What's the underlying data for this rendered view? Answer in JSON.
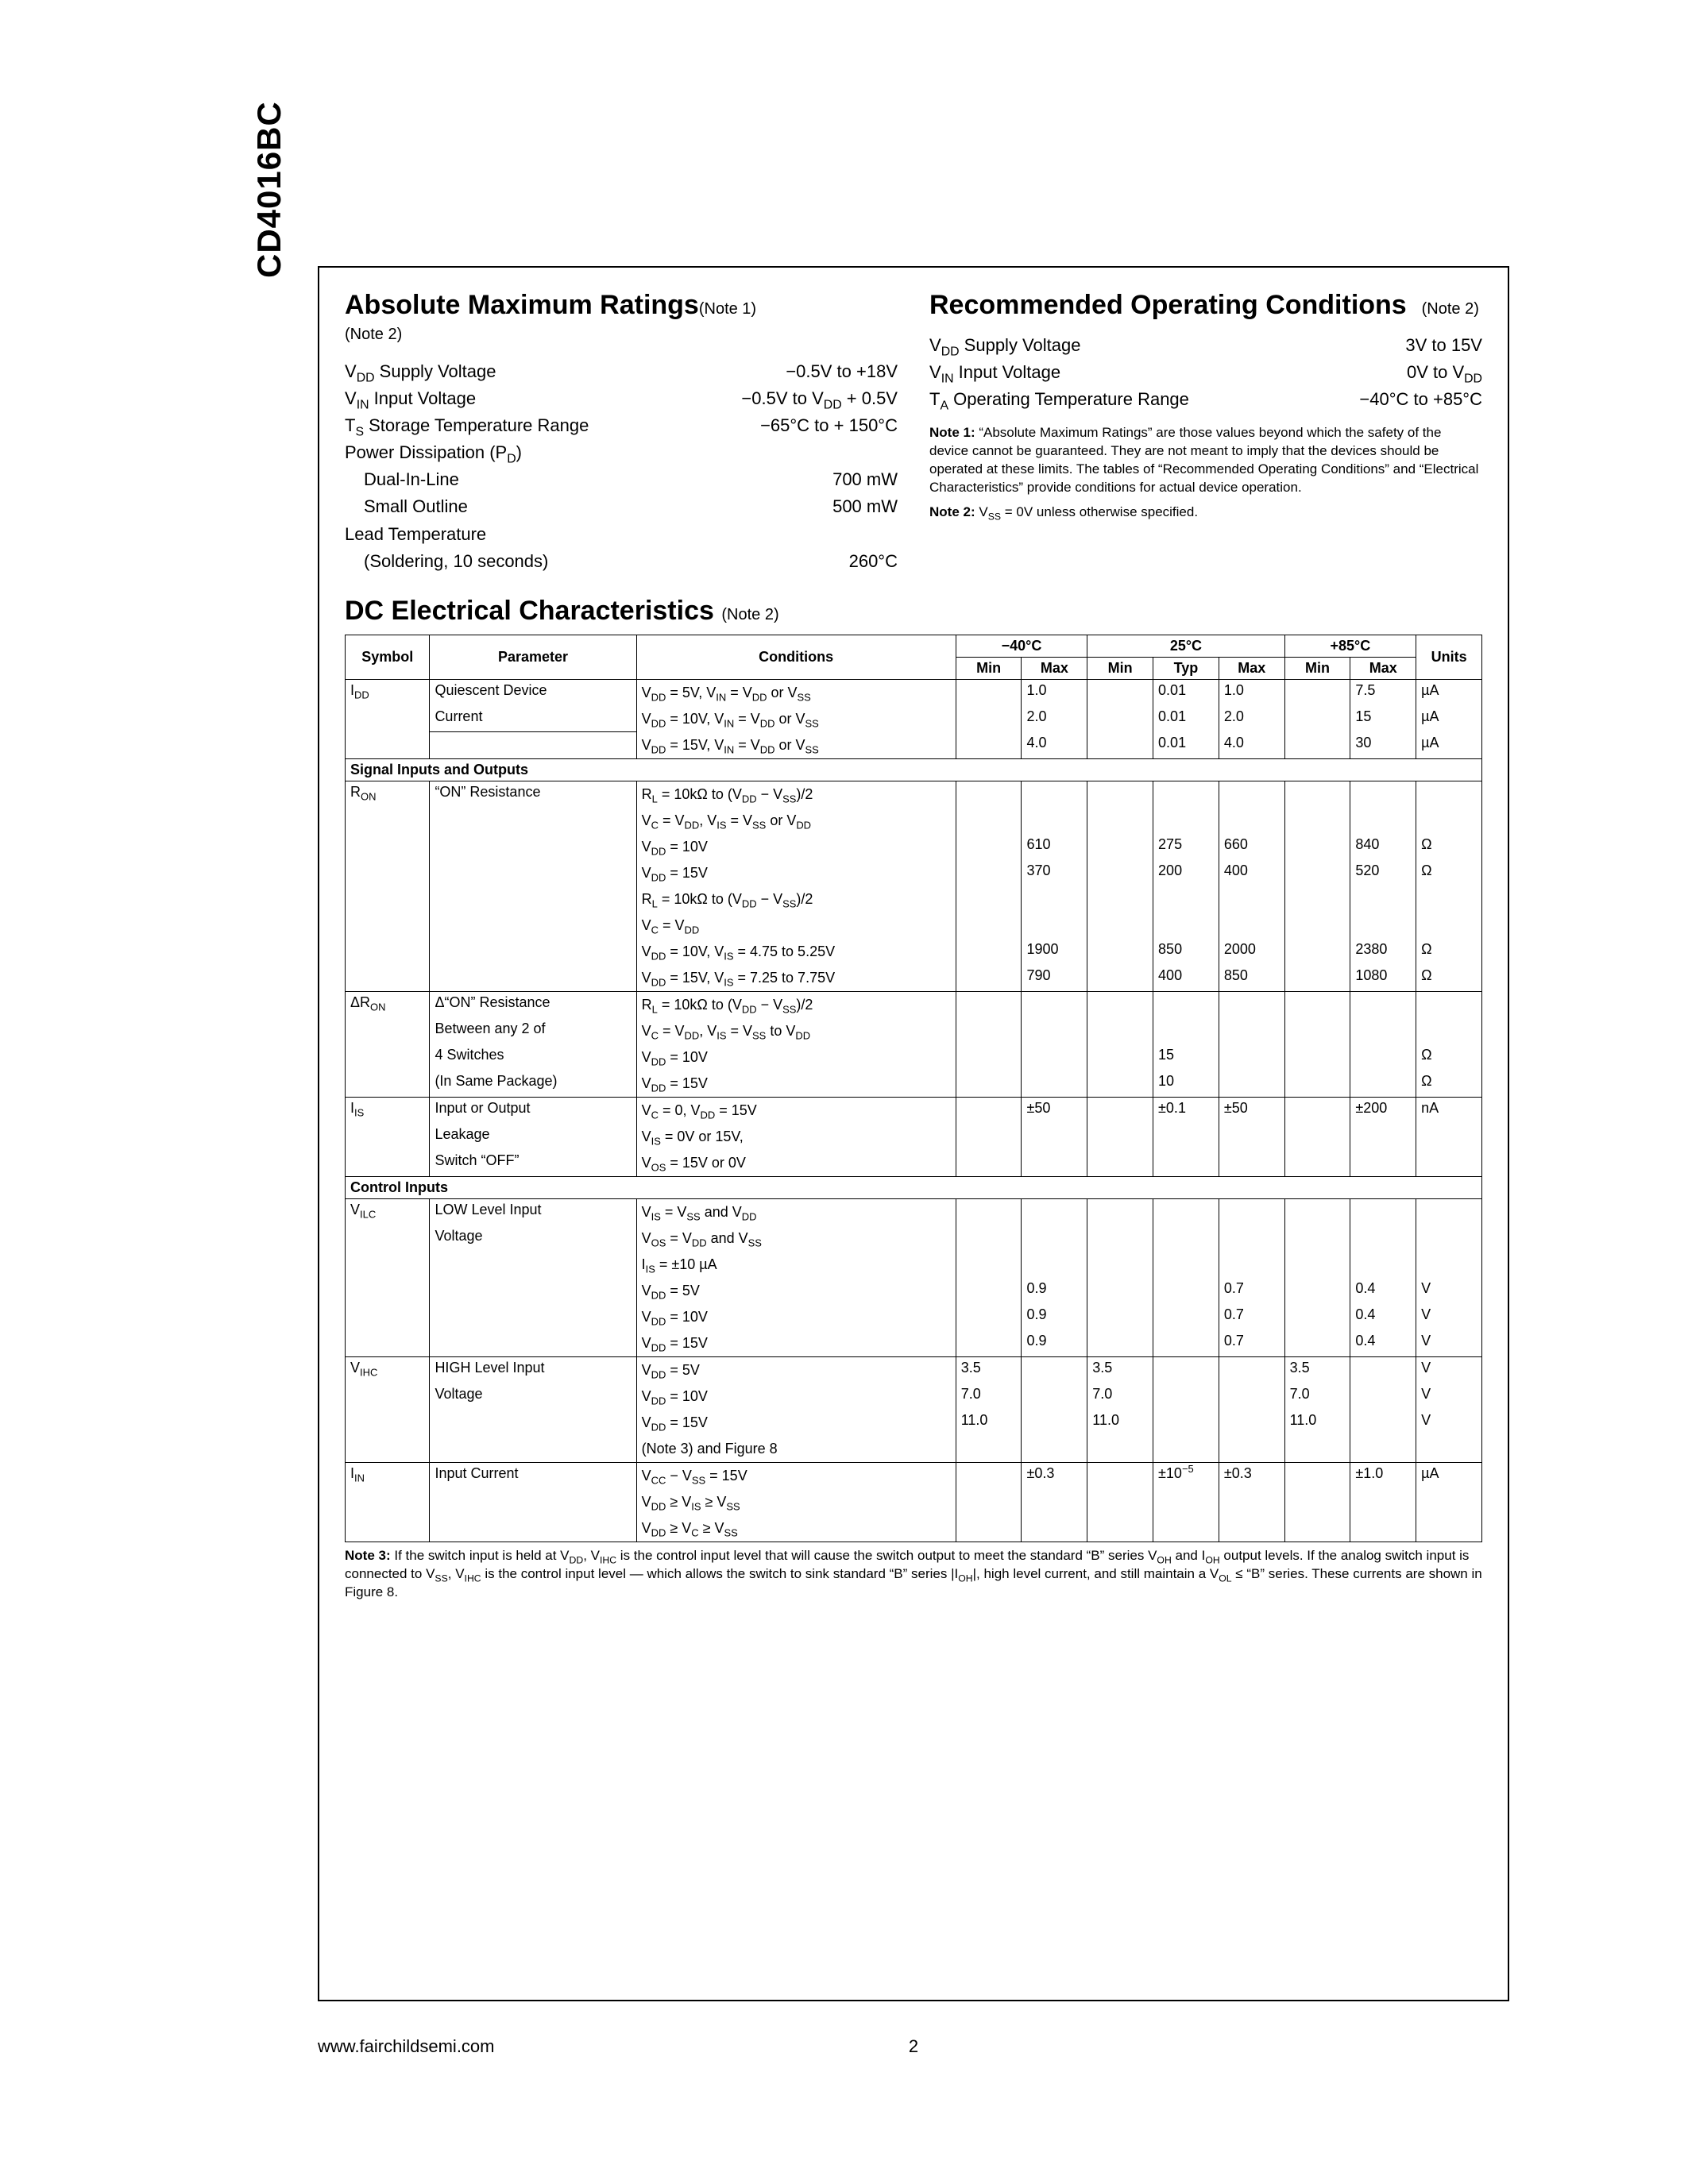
{
  "part_number": "CD4016BC",
  "footer": {
    "url": "www.fairchildsemi.com",
    "page": "2"
  },
  "amr": {
    "title": "Absolute Maximum Ratings",
    "title_note": "(Note 1)",
    "sub_note": "(Note 2)",
    "rows": [
      {
        "label_html": "V<sub>DD</sub> Supply Voltage",
        "value": "−0.5V to +18V"
      },
      {
        "label_html": "V<sub>IN</sub> Input Voltage",
        "value_html": "−0.5V to V<sub>DD</sub> + 0.5V"
      },
      {
        "label_html": "T<sub>S</sub> Storage Temperature Range",
        "value": "−65°C to + 150°C"
      },
      {
        "label_html": "Power Dissipation (P<sub>D</sub>)",
        "value": ""
      },
      {
        "label_html": "Dual-In-Line",
        "value": "700 mW",
        "indent": true
      },
      {
        "label_html": "Small Outline",
        "value": "500 mW",
        "indent": true
      },
      {
        "label_html": "Lead Temperature",
        "value": ""
      },
      {
        "label_html": "(Soldering, 10 seconds)",
        "value": "260°C",
        "indent": true
      }
    ]
  },
  "roc": {
    "title": "Recommended Operating Conditions",
    "title_note": "(Note 2)",
    "rows": [
      {
        "label_html": "V<sub>DD</sub> Supply Voltage",
        "value": "3V to 15V"
      },
      {
        "label_html": "V<sub>IN</sub> Input Voltage",
        "value_html": "0V to V<sub>DD</sub>"
      },
      {
        "label_html": "T<sub>A</sub> Operating Temperature Range",
        "value": "−40°C to +85°C"
      }
    ],
    "note1_html": "<b>Note 1:</b> “Absolute Maximum Ratings” are those values beyond which the safety of the device cannot be guaranteed. They are not meant to imply that the devices should be operated at these limits. The tables of “Recommended Operating Conditions” and “Electrical Characteristics” provide conditions for actual device operation.",
    "note2_html": "<b>Note 2:</b> V<sub>SS</sub> = 0V unless otherwise specified."
  },
  "dc": {
    "title": "DC Electrical Characteristics",
    "title_note": "(Note 2)",
    "header": {
      "symbol": "Symbol",
      "parameter": "Parameter",
      "conditions": "Conditions",
      "t1": "−40°C",
      "t2": "25°C",
      "t3": "+85°C",
      "min": "Min",
      "typ": "Typ",
      "max": "Max",
      "units": "Units"
    },
    "note3_html": "<b>Note 3:</b> If the switch input is held at V<sub>DD</sub>, V<sub>IHC</sub> is the control input level that will cause the switch output to meet the standard “B” series V<sub>OH</sub> and I<sub>OH</sub> output levels. If the analog switch input is connected to V<sub>SS</sub>, V<sub>IHC</sub> is the control input level — which allows the switch to sink standard “B” series |I<sub>OH</sub>|, high level current, and still maintain a V<sub>OL</sub> ≤ “B” series. These currents are shown in Figure 8."
  },
  "idd": {
    "symbol_html": "I<sub>DD</sub>",
    "param": "Quiescent Device Current",
    "lines": [
      {
        "cond_html": "V<sub>DD</sub> = 5V, V<sub>IN</sub> = V<sub>DD</sub> or V<sub>SS</sub>",
        "max40": "1.0",
        "typ25": "0.01",
        "max25": "1.0",
        "max85": "7.5",
        "units": "µA"
      },
      {
        "cond_html": "V<sub>DD</sub> = 10V, V<sub>IN</sub> = V<sub>DD</sub> or V<sub>SS</sub>",
        "max40": "2.0",
        "typ25": "0.01",
        "max25": "2.0",
        "max85": "15",
        "units": "µA"
      },
      {
        "cond_html": "V<sub>DD</sub> = 15V, V<sub>IN</sub> = V<sub>DD</sub> or V<sub>SS</sub>",
        "max40": "4.0",
        "typ25": "0.01",
        "max25": "4.0",
        "max85": "30",
        "units": "µA"
      }
    ]
  },
  "section_sig": "Signal Inputs and Outputs",
  "ron": {
    "symbol_html": "R<sub>ON</sub>",
    "param": "“ON” Resistance",
    "cond_html": [
      "R<sub>L</sub> = 10kΩ to (V<sub>DD</sub> − V<sub>SS</sub>)/2",
      "V<sub>C</sub> = V<sub>DD</sub>, V<sub>IS</sub> = V<sub>SS</sub> or V<sub>DD</sub>",
      "V<sub>DD</sub> = 10V",
      "V<sub>DD</sub> = 15V",
      "R<sub>L</sub> = 10kΩ to (V<sub>DD</sub> − V<sub>SS</sub>)/2",
      "V<sub>C</sub> = V<sub>DD</sub>",
      "V<sub>DD</sub> = 10V, V<sub>IS</sub> = 4.75 to 5.25V",
      "V<sub>DD</sub> = 15V, V<sub>IS</sub> = 7.25 to 7.75V"
    ],
    "rows": [
      {
        "max40": "610",
        "typ25": "275",
        "max25": "660",
        "max85": "840",
        "units": "Ω"
      },
      {
        "max40": "370",
        "typ25": "200",
        "max25": "400",
        "max85": "520",
        "units": "Ω"
      },
      {
        "max40": "1900",
        "typ25": "850",
        "max25": "2000",
        "max85": "2380",
        "units": "Ω"
      },
      {
        "max40": "790",
        "typ25": "400",
        "max25": "850",
        "max85": "1080",
        "units": "Ω"
      }
    ]
  },
  "dron": {
    "symbol_html": "ΔR<sub>ON</sub>",
    "param_lines": [
      "Δ“ON” Resistance",
      "Between any 2 of",
      "4 Switches",
      "(In Same Package)"
    ],
    "cond_html": [
      "R<sub>L</sub> = 10kΩ to (V<sub>DD</sub> − V<sub>SS</sub>)/2",
      "V<sub>C</sub> = V<sub>DD</sub>, V<sub>IS</sub> = V<sub>SS</sub> to V<sub>DD</sub>",
      "V<sub>DD</sub> = 10V",
      "V<sub>DD</sub> = 15V"
    ],
    "rows": [
      {
        "typ25": "15",
        "units": "Ω"
      },
      {
        "typ25": "10",
        "units": "Ω"
      }
    ]
  },
  "iis": {
    "symbol_html": "I<sub>IS</sub>",
    "param_lines": [
      "Input or Output",
      "Leakage",
      "Switch “OFF”"
    ],
    "cond_html": [
      "V<sub>C</sub> = 0, V<sub>DD</sub> = 15V",
      "V<sub>IS</sub> = 0V or 15V,",
      "V<sub>OS</sub> = 15V or 0V"
    ],
    "row": {
      "max40": "±50",
      "typ25": "±0.1",
      "max25": "±50",
      "max85": "±200",
      "units": "nA"
    }
  },
  "section_ctrl": "Control Inputs",
  "vilc": {
    "symbol_html": "V<sub>ILC</sub>",
    "param_lines": [
      "LOW Level Input",
      "Voltage"
    ],
    "cond_html": [
      "V<sub>IS</sub> = V<sub>SS</sub> and V<sub>DD</sub>",
      "V<sub>OS</sub> = V<sub>DD</sub> and V<sub>SS</sub>",
      "I<sub>IS</sub> = ±10 µA",
      "V<sub>DD</sub> = 5V",
      "V<sub>DD</sub> = 10V",
      "V<sub>DD</sub> = 15V"
    ],
    "rows": [
      {
        "max40": "0.9",
        "max25": "0.7",
        "max85": "0.4",
        "units": "V"
      },
      {
        "max40": "0.9",
        "max25": "0.7",
        "max85": "0.4",
        "units": "V"
      },
      {
        "max40": "0.9",
        "max25": "0.7",
        "max85": "0.4",
        "units": "V"
      }
    ]
  },
  "vihc": {
    "symbol_html": "V<sub>IHC</sub>",
    "param_lines": [
      "HIGH Level Input",
      "Voltage"
    ],
    "cond_html": [
      "V<sub>DD</sub> = 5V",
      "V<sub>DD</sub> = 10V",
      "V<sub>DD</sub> = 15V",
      "(Note 3) and Figure 8"
    ],
    "rows": [
      {
        "min40": "3.5",
        "min25": "3.5",
        "min85": "3.5",
        "units": "V"
      },
      {
        "min40": "7.0",
        "min25": "7.0",
        "min85": "7.0",
        "units": "V"
      },
      {
        "min40": "11.0",
        "min25": "11.0",
        "min85": "11.0",
        "units": "V"
      }
    ]
  },
  "iin": {
    "symbol_html": "I<sub>IN</sub>",
    "param": "Input Current",
    "cond_html": [
      "V<sub>CC</sub> − V<sub>SS</sub> = 15V",
      "V<sub>DD</sub> ≥ V<sub>IS</sub> ≥ V<sub>SS</sub>",
      "V<sub>DD</sub> ≥ V<sub>C</sub> ≥ V<sub>SS</sub>"
    ],
    "row": {
      "max40": "±0.3",
      "typ25_html": "±10<sup>−5</sup>",
      "max25": "±0.3",
      "max85": "±1.0",
      "units": "µA"
    }
  }
}
